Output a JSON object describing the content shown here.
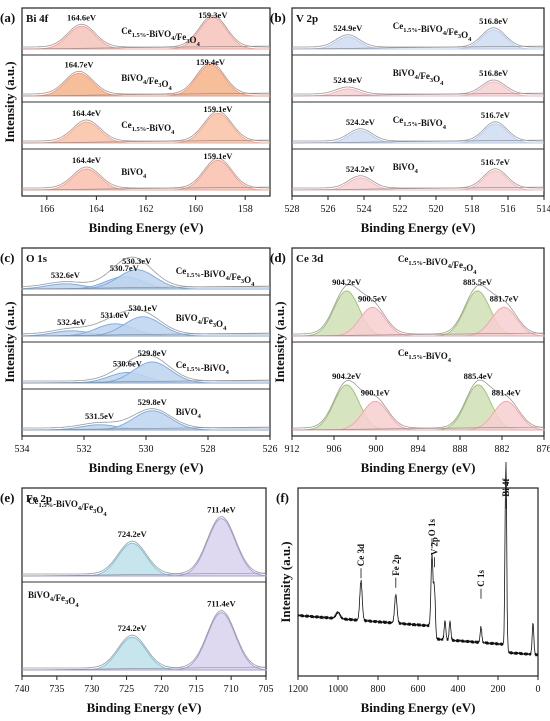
{
  "figure": {
    "xlabel": "Binding Energy (eV)",
    "ylabel": "Intensity (a.u.)"
  },
  "chart_data": [
    {
      "id": "a",
      "type": "line",
      "panel_label": "(a)",
      "title": "Bi 4f",
      "xlabel": "Binding Energy (eV)",
      "ylabel": "Intensity (a.u.)",
      "xlim": [
        167,
        157
      ],
      "xticks": [
        166,
        164,
        162,
        160,
        158
      ],
      "samples": [
        {
          "name": "Ce1.5%-BiVO4/Fe3O4",
          "label_main": "Ce",
          "label_sub": "1.5%",
          "label_mid": "-BiVO",
          "label_sub2": "4",
          "label_end": "/Fe",
          "label_sub3": "3",
          "label_tail": "O",
          "label_sub4": "4",
          "peaks": [
            {
              "x": 164.6,
              "label": "164.6eV"
            },
            {
              "x": 159.3,
              "label": "159.3eV"
            }
          ],
          "color": "#e8a09a",
          "fill": "#f6c9c2"
        },
        {
          "name": "BiVO4/Fe3O4",
          "label_main": "BiVO",
          "label_sub": "4",
          "label_mid": "/Fe",
          "label_sub2": "3",
          "label_end": "O",
          "label_sub3": "4",
          "peaks": [
            {
              "x": 164.7,
              "label": "164.7eV"
            },
            {
              "x": 159.4,
              "label": "159.4eV"
            }
          ],
          "color": "#e88a7e",
          "fill": "#f2a990"
        },
        {
          "name": "Ce1.5%-BiVO4",
          "label_main": "Ce",
          "label_sub": "1.5%",
          "label_mid": "-BiVO",
          "label_sub2": "4",
          "peaks": [
            {
              "x": 164.4,
              "label": "164.4eV"
            },
            {
              "x": 159.1,
              "label": "159.1eV"
            }
          ],
          "color": "#ef9a84",
          "fill": "#f7b9a4"
        },
        {
          "name": "BiVO4",
          "label_main": "BiVO",
          "label_sub": "4",
          "peaks": [
            {
              "x": 164.4,
              "label": "164.4eV"
            },
            {
              "x": 159.1,
              "label": "159.1eV"
            }
          ],
          "color": "#f09484",
          "fill": "#f8b7a6"
        }
      ]
    },
    {
      "id": "b",
      "type": "line",
      "panel_label": "(b)",
      "title": "V 2p",
      "xlabel": "Binding Energy (eV)",
      "ylabel": "",
      "xlim": [
        528,
        514
      ],
      "xticks": [
        528,
        526,
        524,
        522,
        520,
        518,
        516,
        514
      ],
      "samples": [
        {
          "name": "Ce1.5%-BiVO4/Fe3O4",
          "peaks": [
            {
              "x": 524.9,
              "label": "524.9eV"
            },
            {
              "x": 516.8,
              "label": "516.8eV"
            }
          ]
        },
        {
          "name": "BiVO4/Fe3O4",
          "peaks": [
            {
              "x": 524.9,
              "label": "524.9eV"
            },
            {
              "x": 516.8,
              "label": "516.8eV"
            }
          ]
        },
        {
          "name": "Ce1.5%-BiVO4",
          "peaks": [
            {
              "x": 524.2,
              "label": "524.2eV"
            },
            {
              "x": 516.7,
              "label": "516.7eV"
            }
          ]
        },
        {
          "name": "BiVO4",
          "peaks": [
            {
              "x": 524.2,
              "label": "524.2eV"
            },
            {
              "x": 516.7,
              "label": "516.7eV"
            }
          ]
        }
      ]
    },
    {
      "id": "c",
      "type": "line",
      "panel_label": "(c)",
      "title": "O 1s",
      "xlabel": "Binding Energy (eV)",
      "ylabel": "Intensity (a.u.)",
      "xlim": [
        534,
        526
      ],
      "xticks": [
        534,
        532,
        530,
        528,
        526
      ],
      "samples": [
        {
          "name": "Ce1.5%-BiVO4/Fe3O4",
          "peaks": [
            {
              "x": 532.6,
              "label": "532.6eV"
            },
            {
              "x": 530.7,
              "label": "530.7eV"
            },
            {
              "x": 530.3,
              "label": "530.3eV"
            }
          ]
        },
        {
          "name": "BiVO4/Fe3O4",
          "peaks": [
            {
              "x": 532.4,
              "label": "532.4eV"
            },
            {
              "x": 531.0,
              "label": "531.0eV"
            },
            {
              "x": 530.1,
              "label": "530.1eV"
            }
          ]
        },
        {
          "name": "Ce1.5%-BiVO4",
          "peaks": [
            {
              "x": 530.6,
              "label": "530.6eV"
            },
            {
              "x": 529.8,
              "label": "529.8eV"
            }
          ]
        },
        {
          "name": "BiVO4",
          "peaks": [
            {
              "x": 531.5,
              "label": "531.5eV"
            },
            {
              "x": 529.8,
              "label": "529.8eV"
            }
          ]
        }
      ]
    },
    {
      "id": "d",
      "type": "line",
      "panel_label": "(d)",
      "title": "Ce 3d",
      "xlabel": "Binding Energy (eV)",
      "ylabel": "Intensity (a.u.)",
      "xlim": [
        912,
        876
      ],
      "xticks": [
        912,
        906,
        900,
        894,
        888,
        882,
        876
      ],
      "samples": [
        {
          "name": "Ce1.5%-BiVO4/Fe3O4",
          "peaks": [
            {
              "x": 904.2,
              "label": "904.2eV"
            },
            {
              "x": 900.5,
              "label": "900.5eV"
            },
            {
              "x": 885.5,
              "label": "885.5eV"
            },
            {
              "x": 881.7,
              "label": "881.7eV"
            }
          ]
        },
        {
          "name": "Ce1.5%-BiVO4",
          "peaks": [
            {
              "x": 904.2,
              "label": "904.2eV"
            },
            {
              "x": 900.1,
              "label": "900.1eV"
            },
            {
              "x": 885.4,
              "label": "885.4eV"
            },
            {
              "x": 881.4,
              "label": "881.4eV"
            }
          ]
        }
      ]
    },
    {
      "id": "e",
      "type": "line",
      "panel_label": "(e)",
      "title": "Fe 2p",
      "xlabel": "Binding Energy (eV)",
      "ylabel": "",
      "xlim": [
        740,
        705
      ],
      "xticks": [
        740,
        735,
        730,
        725,
        720,
        715,
        710,
        705
      ],
      "samples": [
        {
          "name": "Ce1.5%-BiVO4/Fe3O4",
          "peaks": [
            {
              "x": 724.2,
              "label": "724.2eV"
            },
            {
              "x": 711.4,
              "label": "711.4eV"
            }
          ]
        },
        {
          "name": "BiVO4/Fe3O4",
          "peaks": [
            {
              "x": 724.2,
              "label": "724.2eV"
            },
            {
              "x": 711.4,
              "label": "711.4eV"
            }
          ]
        }
      ]
    },
    {
      "id": "f",
      "type": "line",
      "panel_label": "(f)",
      "title": "",
      "xlabel": "Binding Energy (eV)",
      "ylabel": "Intensity (a.u.)",
      "xlim": [
        1200,
        0
      ],
      "xticks": [
        1200,
        1000,
        800,
        600,
        400,
        200,
        0
      ],
      "annotations": [
        {
          "x": 885,
          "label": "Ce 3d"
        },
        {
          "x": 711,
          "label": "Fe 2p"
        },
        {
          "x": 530,
          "label": "O 1s"
        },
        {
          "x": 517,
          "label": "V 2p"
        },
        {
          "x": 285,
          "label": "C 1s"
        },
        {
          "x": 159,
          "label": "Bi 4f"
        }
      ]
    }
  ]
}
